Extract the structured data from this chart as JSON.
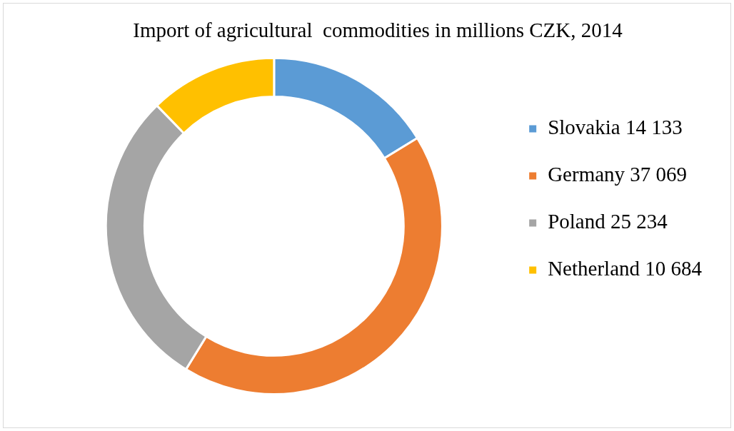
{
  "chart_data": {
    "type": "donut",
    "title": "Import of agricultural  commodities in millions CZK, 2014",
    "categories": [
      "Slovakia 14 133",
      "Germany 37 069",
      "Poland 25 234",
      "Netherland 10 684"
    ],
    "values": [
      14133,
      37069,
      25234,
      10684
    ],
    "colors": [
      "#5b9bd5",
      "#ed7d31",
      "#a5a5a5",
      "#ffc000"
    ],
    "legend": "right"
  }
}
